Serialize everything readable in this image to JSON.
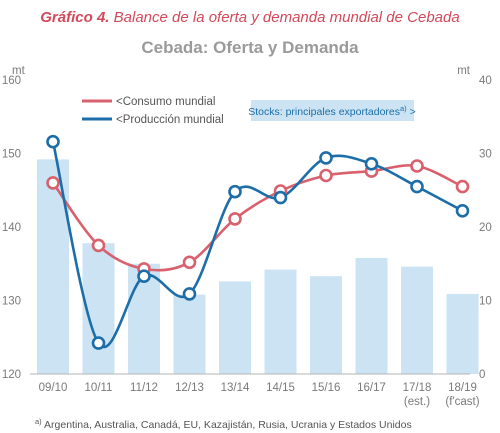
{
  "chart_data": {
    "type": "bar+line",
    "title_prefix": "Gráfico 4.",
    "title_rest": " Balance de la oferta y demanda mundial de Cebada",
    "subtitle": "Cebada: Oferta y Demanda",
    "left_unit": "mt",
    "right_unit": "mt",
    "categories": [
      [
        "09/10"
      ],
      [
        "10/11"
      ],
      [
        "11/12"
      ],
      [
        "12/13"
      ],
      [
        "13/14"
      ],
      [
        "14/15"
      ],
      [
        "15/16"
      ],
      [
        "16/17"
      ],
      [
        "17/18",
        "(est.)"
      ],
      [
        "18/19",
        "(f'cast)"
      ]
    ],
    "ylim_left": [
      120,
      160
    ],
    "yticks_left": [
      "120",
      "130",
      "140",
      "150",
      "160"
    ],
    "ylim_right": [
      0,
      40
    ],
    "yticks_right": [
      "0",
      "10",
      "20",
      "30",
      "40"
    ],
    "stocks_label": "Stocks: principales exportadores",
    "stocks_label_sup": "a)",
    "stocks_label_suffix": " >",
    "stocks": [
      29.2,
      17.8,
      15.0,
      10.8,
      12.6,
      14.2,
      13.3,
      15.8,
      14.6,
      10.9
    ],
    "consumo_label": "<Consumo mundial",
    "consumo": [
      146.0,
      137.5,
      134.3,
      135.2,
      141.1,
      144.9,
      147.0,
      147.6,
      148.3,
      145.5
    ],
    "produccion_label": "<Producción mundial",
    "produccion": [
      151.6,
      124.2,
      133.3,
      130.9,
      144.8,
      144.0,
      149.4,
      148.6,
      145.5,
      142.2
    ],
    "colors": {
      "bars": "#cbe3f3",
      "consumo": "#d9606d",
      "produccion": "#1d6ea8",
      "stocks_box": "#cbe3f3"
    },
    "footnote_sup": "a)",
    "footnote": " Argentina, Australia, Canadá, EU, Kazajistán, Rusia, Ucrania y Estados Unidos"
  }
}
